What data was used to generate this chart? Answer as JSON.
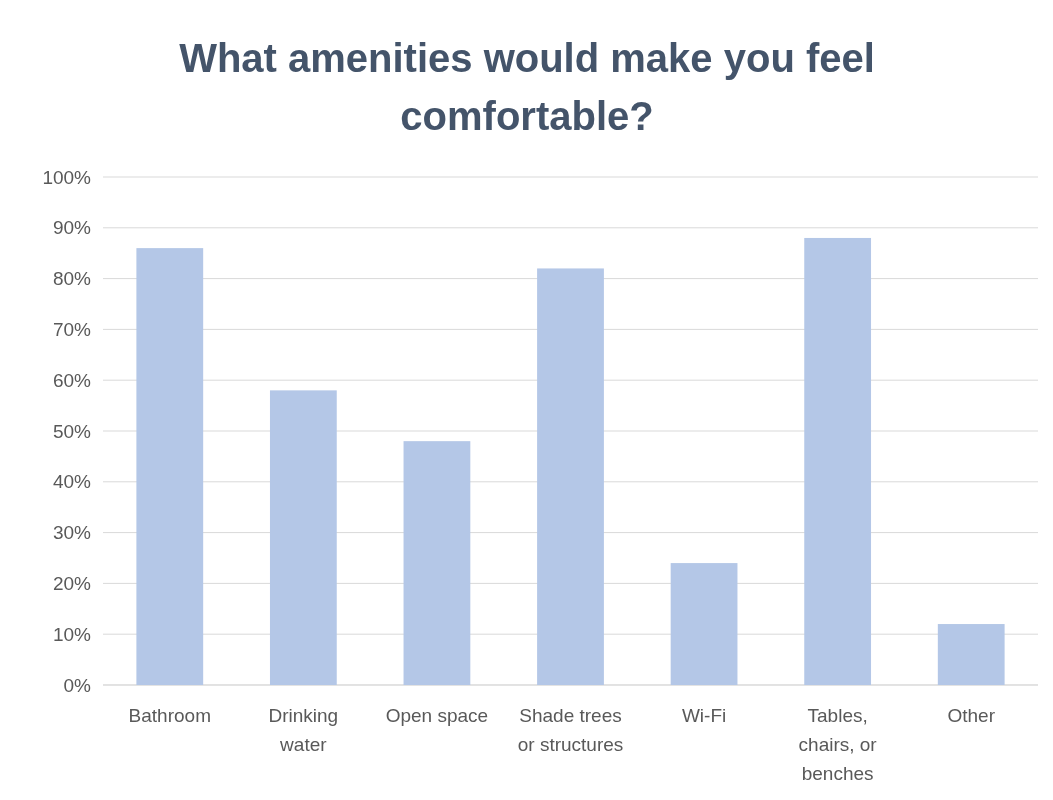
{
  "chart_data": {
    "type": "bar",
    "title": "What amenities would make you feel comfortable?",
    "categories": [
      "Bathroom",
      "Drinking water",
      "Open space",
      "Shade trees or structures",
      "Wi-Fi",
      "Tables, chairs, or benches",
      "Other"
    ],
    "values": [
      86,
      58,
      48,
      82,
      24,
      88,
      12
    ],
    "color": "#b4c7e7",
    "ylim": [
      0,
      100
    ],
    "yticks": [
      {
        "value": 0,
        "label": "0%"
      },
      {
        "value": 10,
        "label": "10%"
      },
      {
        "value": 20,
        "label": "20%"
      },
      {
        "value": 30,
        "label": "30%"
      },
      {
        "value": 40,
        "label": "40%"
      },
      {
        "value": 50,
        "label": "50%"
      },
      {
        "value": 60,
        "label": "60%"
      },
      {
        "value": 70,
        "label": "70%"
      },
      {
        "value": 80,
        "label": "80%"
      },
      {
        "value": 90,
        "label": "90%"
      },
      {
        "value": 100,
        "label": "100%"
      }
    ],
    "grid": "y"
  }
}
